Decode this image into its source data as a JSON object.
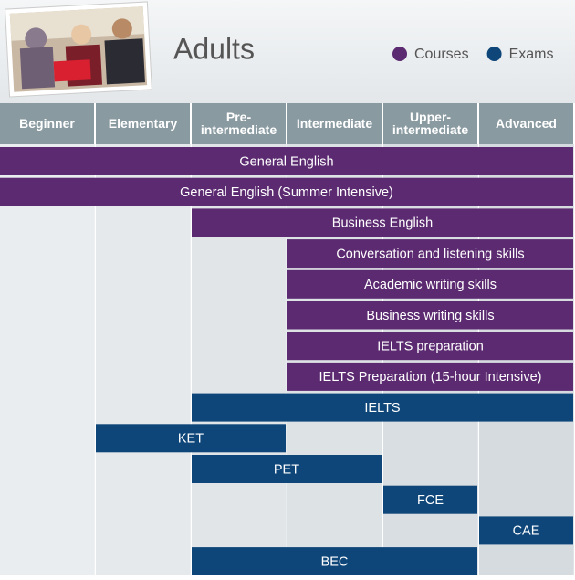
{
  "header": {
    "title": "Adults",
    "legend": [
      {
        "label": "Courses",
        "color": "#5b2a70"
      },
      {
        "label": "Exams",
        "color": "#0f4679"
      }
    ]
  },
  "levels": [
    [
      "Beginner"
    ],
    [
      "Elementary"
    ],
    [
      "Pre-",
      "intermediate"
    ],
    [
      "Intermediate"
    ],
    [
      "Upper-",
      "intermediate"
    ],
    [
      "Advanced"
    ]
  ],
  "bars": [
    {
      "name": "General English",
      "kind": 0,
      "span": [
        0,
        5
      ]
    },
    {
      "name": "General English (Summer Intensive)",
      "kind": 0,
      "span": [
        0,
        5
      ]
    },
    {
      "name": "Business English",
      "kind": 0,
      "span": [
        2,
        5
      ]
    },
    {
      "name": "Conversation and listening skills",
      "kind": 0,
      "span": [
        3,
        5
      ]
    },
    {
      "name": "Academic writing skills",
      "kind": 0,
      "span": [
        3,
        5
      ]
    },
    {
      "name": "Business writing skills",
      "kind": 0,
      "span": [
        3,
        5
      ]
    },
    {
      "name": "IELTS preparation",
      "kind": 0,
      "span": [
        3,
        5
      ]
    },
    {
      "name": "IELTS Preparation (15-hour Intensive)",
      "kind": 0,
      "span": [
        3,
        5
      ]
    },
    {
      "name": "IELTS",
      "kind": 1,
      "span": [
        2,
        5
      ]
    },
    {
      "name": "KET",
      "kind": 1,
      "span": [
        1,
        2
      ]
    },
    {
      "name": "PET",
      "kind": 1,
      "span": [
        2,
        3
      ]
    },
    {
      "name": "FCE",
      "kind": 1,
      "span": [
        4,
        4
      ]
    },
    {
      "name": "CAE",
      "kind": 1,
      "span": [
        5,
        5
      ]
    },
    {
      "name": "BEC",
      "kind": 1,
      "span": [
        2,
        4
      ]
    }
  ]
}
